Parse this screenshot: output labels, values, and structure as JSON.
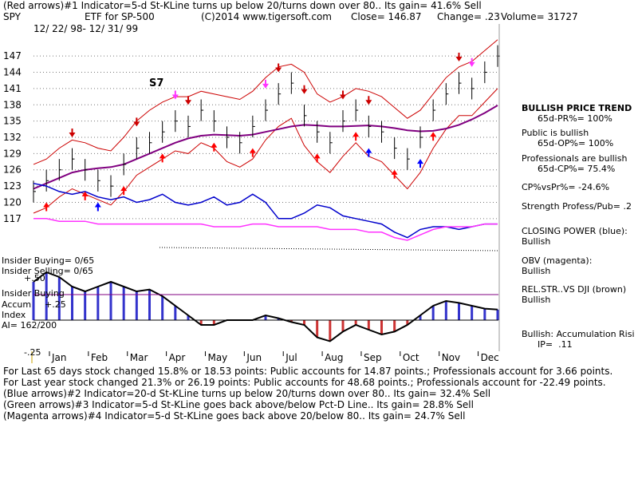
{
  "header": {
    "line1": "(Red arrows)#1 Indicator=5-d St-KLine turns up below 20/turns down over 80.. Its gain= 41.6% Sell",
    "symbol": "SPY",
    "description": "ETF for SP-500",
    "copyright": "(C)2014 www.tigersoft.com",
    "close": "Close=  146.87",
    "change": "Change= .23",
    "volume": "Volume= 31727",
    "date_range": "12/ 22/ 98- 12/ 31/ 99"
  },
  "chart_label": "S7",
  "side_panel": {
    "trend_title": "BULLISH PRICE TREND",
    "trend_value": "65d-PR%= 100%",
    "public_title": "Public is bullish",
    "public_value": "65d-OP%= 100%",
    "pros_title": "Professionals are bullish",
    "pros_value": "65d-CP%= 75.4%",
    "cp_vs_pr": "CP%vsPr%= -24.6%",
    "strength": "Strength Profess/Pub= .2",
    "closing_power_title": "CLOSING POWER (blue):",
    "closing_power_value": "Bullish",
    "obv_title": "OBV (magenta):",
    "obv_value": "Bullish",
    "relstr_title": "REL.STR..VS DJI (brown)",
    "relstr_value": "Bullish",
    "accum_title": "Bullish: Accumulation Risi",
    "ip_value": "IP=  .11"
  },
  "indicator_panel": {
    "insider_buying": "Insider Buying= 0/65",
    "insider_selling": "Insider Selling= 0/65",
    "insider_buying_label": "Insider Buying",
    "accum_label": "Accum",
    "index_label": "Index",
    "ai_value": "AI= 162/200",
    "tick_plus50": "+.50",
    "tick_plus25": "+.25",
    "tick_minus25": "-.25"
  },
  "footer": {
    "line1": "For Last 65 days stock changed  15.8% or  18.53 points:  Public accounts for  14.87 points.;  Professionals account for  3.66 points.",
    "line2": "For Last year stock changed  21.3% or  26.19 points:  Public accounts for  48.68 points.;  Professionals account for -22.49 points.",
    "line3": "(Blue arrows)#2 Indicator=20-d St-KLine turns up below 20/turns down over 80.. Its gain= 32.4% Sell",
    "line4": "(Green arrows)#3 Indicator=5-d St-KLine goes back above/below Pct-D Line.. Its gain= 28.8% Sell",
    "line5": "(Magenta arrows)#4 Indicator=5-d St-KLine goes back above 20/below 80.. Its gain= 24.7% Sell"
  },
  "colors": {
    "price_bars": "#000000",
    "band": "#cc0000",
    "ma": "#800080",
    "closing_power": "#0000cc",
    "obv": "#ff33ff",
    "relstr_dots": "#8b4513",
    "buy_arrow": "#ff0000",
    "sell_arrow": "#cc0000",
    "blue_arrow": "#0000ff",
    "magenta_arrow": "#ff33ff",
    "accum_pos": "#3333cc",
    "accum_neg": "#cc3333"
  },
  "chart_data": {
    "type": "line",
    "title": "",
    "ylabel": "",
    "xlabel": "",
    "yticks": [
      117,
      120,
      123,
      126,
      129,
      132,
      135,
      138,
      141,
      144,
      147
    ],
    "ylim": [
      115.5,
      148.5
    ],
    "xticks": [
      "Jan",
      "Feb",
      "Mar",
      "Apr",
      "May",
      "Jun",
      "Jul",
      "Aug",
      "Sep",
      "Oct",
      "Nov",
      "Dec"
    ],
    "grid": true,
    "price_series": {
      "name": "SPY",
      "x": [
        "Dec-98",
        "Jan",
        "Jan",
        "Jan",
        "Feb",
        "Feb",
        "Feb",
        "Mar",
        "Mar",
        "Mar",
        "Apr",
        "Apr",
        "Apr",
        "May",
        "May",
        "May",
        "Jun",
        "Jun",
        "Jun",
        "Jul",
        "Jul",
        "Jul",
        "Aug",
        "Aug",
        "Aug",
        "Sep",
        "Sep",
        "Sep",
        "Oct",
        "Oct",
        "Oct",
        "Nov",
        "Nov",
        "Nov",
        "Dec",
        "Dec",
        "Dec"
      ],
      "close": [
        122,
        124,
        126,
        128,
        126,
        124,
        123,
        127,
        130,
        131,
        133,
        135,
        134,
        137,
        135,
        132,
        131,
        134,
        137,
        140,
        142,
        136,
        133,
        131,
        135,
        137,
        134,
        133,
        130,
        128,
        132,
        137,
        140,
        142,
        141,
        144,
        147
      ]
    },
    "series": [
      {
        "name": "",
        "values": [
          122.5,
          123.5,
          124.5,
          125.5,
          126,
          126.3,
          126.5,
          127,
          128,
          129,
          130,
          131,
          131.8,
          132.3,
          132.5,
          132.4,
          132.3,
          132.5,
          133,
          133.5,
          134,
          134.3,
          134.2,
          134,
          134,
          134.1,
          134.2,
          134,
          133.7,
          133.3,
          133.1,
          133.2,
          133.6,
          134.3,
          135.3,
          136.5,
          137.9
        ]
      },
      {
        "name": "",
        "values": [
          127,
          128,
          130,
          131.5,
          131,
          130,
          129.5,
          132,
          135,
          137,
          138.5,
          139.5,
          139.5,
          140.5,
          140,
          139.5,
          139,
          140.5,
          143,
          145,
          145.5,
          144,
          140,
          138.5,
          139.5,
          141,
          140.5,
          139.5,
          137.5,
          135.5,
          137,
          140,
          143,
          145,
          146,
          148,
          150
        ]
      },
      {
        "name": "",
        "values": [
          118,
          119,
          121,
          122.5,
          121.5,
          120.5,
          119.5,
          122,
          125,
          126.5,
          128,
          129.5,
          129,
          131,
          130,
          127.5,
          126.5,
          128,
          131.5,
          134,
          135.5,
          130.5,
          127.5,
          125.5,
          128.5,
          131,
          128.5,
          127.5,
          125,
          122.5,
          125.5,
          130,
          133.5,
          136,
          136,
          138.5,
          141
        ]
      }
    ],
    "closing_power": {
      "name": "CLOSING POWER (blue)",
      "values": [
        123.5,
        123,
        122,
        121.5,
        122,
        121,
        120.5,
        121,
        120,
        120.5,
        121.5,
        120,
        119.5,
        120,
        121,
        119.5,
        120,
        121.5,
        120,
        117,
        117,
        118,
        119.5,
        119,
        117.5,
        117,
        116.5,
        116,
        114.5,
        113.5,
        115,
        115.5,
        115.5,
        115,
        115.5,
        116,
        116
      ]
    },
    "obv": {
      "name": "OBV (magenta)",
      "values": [
        117,
        117,
        116.5,
        116.5,
        116.5,
        116,
        116,
        116,
        116,
        116,
        116,
        116,
        116,
        116,
        115.5,
        115.5,
        115.5,
        116,
        116,
        115.5,
        115.5,
        115.5,
        115.5,
        115,
        115,
        115,
        114.5,
        114.5,
        113.5,
        113,
        114,
        115,
        115.5,
        115.5,
        115.5,
        116,
        116
      ]
    },
    "accumulation_index": {
      "name": "Accum Index",
      "values": [
        0.4,
        0.5,
        0.45,
        0.35,
        0.3,
        0.35,
        0.4,
        0.35,
        0.3,
        0.32,
        0.25,
        0.15,
        0.05,
        -0.05,
        -0.05,
        0.0,
        0.0,
        0.0,
        0.05,
        0.02,
        -0.02,
        -0.05,
        -0.18,
        -0.22,
        -0.12,
        -0.05,
        -0.1,
        -0.15,
        -0.12,
        -0.05,
        0.05,
        0.15,
        0.2,
        0.18,
        0.15,
        0.12,
        0.11
      ]
    },
    "yticks_accum": [
      "+.50",
      "+.25",
      "-.25"
    ]
  }
}
